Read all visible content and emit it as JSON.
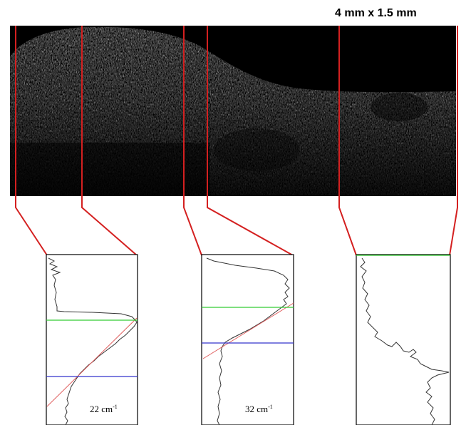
{
  "figure": {
    "scale_label": "4 mm x 1.5 mm",
    "image_description_icon": "oct-cross-section-image",
    "colors": {
      "callout": "#d42020",
      "profile": "#333333",
      "upper_marker": "#33cc33",
      "lower_marker": "#3333cc",
      "fit_line": "#e06060"
    },
    "panels": [
      {
        "id": "panel-1",
        "attenuation_value": "22",
        "attenuation_unit": "cm",
        "attenuation_exponent": "-1"
      },
      {
        "id": "panel-2",
        "attenuation_value": "32",
        "attenuation_unit": "cm",
        "attenuation_exponent": "-1"
      },
      {
        "id": "panel-3",
        "attenuation_value": "",
        "attenuation_unit": "",
        "attenuation_exponent": ""
      }
    ]
  }
}
